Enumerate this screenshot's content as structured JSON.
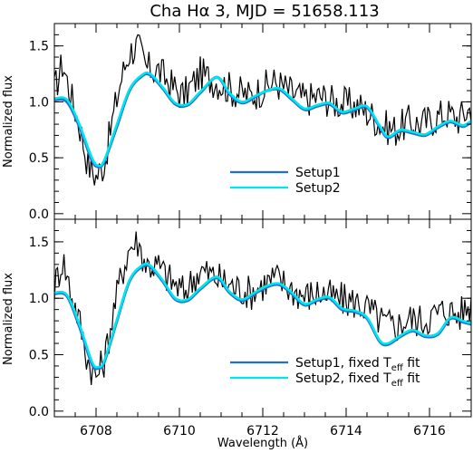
{
  "chart_data": [
    {
      "type": "line",
      "title": "Cha Hα 3, MJD = 51658.113",
      "xlabel": "",
      "ylabel": "Normalized flux",
      "xlim": [
        6707.0,
        6717.0
      ],
      "ylim": [
        -0.05,
        1.7
      ],
      "y_ticks": [
        "0.0",
        "0.5",
        "1.0",
        "1.5"
      ],
      "x_ticks": [
        "",
        "",
        "",
        "",
        ""
      ],
      "legend_position": "bottom-right",
      "series": [
        {
          "name": "",
          "color": "#000000",
          "kind": "observed-noisy",
          "x": [
            6707.0,
            6707.2,
            6707.4,
            6707.6,
            6707.8,
            6708.0,
            6708.2,
            6708.4,
            6708.6,
            6708.8,
            6709.0,
            6709.2,
            6709.5,
            6709.8,
            6710.1,
            6710.5,
            6710.9,
            6711.3,
            6711.7,
            6712.0,
            6712.3,
            6712.7,
            6713.0,
            6713.4,
            6713.7,
            6714.0,
            6714.3,
            6714.6,
            6714.9,
            6715.2,
            6715.5,
            6715.8,
            6716.1,
            6716.4,
            6716.7,
            6717.0
          ],
          "y": [
            1.1,
            1.35,
            1.05,
            0.8,
            0.45,
            0.33,
            0.45,
            0.85,
            1.2,
            1.45,
            1.5,
            1.3,
            1.28,
            1.15,
            1.05,
            1.25,
            1.18,
            1.1,
            1.05,
            1.12,
            1.18,
            1.08,
            1.02,
            1.05,
            1.0,
            0.98,
            0.96,
            0.88,
            0.78,
            0.75,
            0.82,
            0.8,
            0.85,
            0.9,
            0.85,
            0.95
          ]
        },
        {
          "name": "Setup1",
          "color": "#1f6fd1",
          "x": [
            6707.0,
            6707.3,
            6707.6,
            6707.9,
            6708.05,
            6708.2,
            6708.5,
            6708.8,
            6709.1,
            6709.3,
            6709.6,
            6709.9,
            6710.2,
            6710.5,
            6710.9,
            6711.2,
            6711.5,
            6711.8,
            6712.1,
            6712.4,
            6712.7,
            6713.0,
            6713.3,
            6713.6,
            6713.9,
            6714.2,
            6714.5,
            6714.8,
            6715.0,
            6715.3,
            6715.6,
            6715.9,
            6716.2,
            6716.5,
            6716.8,
            6717.0
          ],
          "y": [
            1.02,
            1.0,
            0.78,
            0.48,
            0.42,
            0.47,
            0.78,
            1.1,
            1.23,
            1.24,
            1.12,
            0.98,
            0.97,
            1.08,
            1.22,
            1.07,
            0.99,
            1.04,
            1.1,
            1.11,
            1.02,
            0.93,
            0.96,
            0.98,
            0.9,
            0.93,
            0.95,
            0.78,
            0.68,
            0.74,
            0.72,
            0.7,
            0.77,
            0.82,
            0.78,
            0.82
          ]
        },
        {
          "name": "Setup2",
          "color": "#00e5ee",
          "x": [
            6707.0,
            6707.3,
            6707.6,
            6707.9,
            6708.05,
            6708.2,
            6708.5,
            6708.8,
            6709.1,
            6709.3,
            6709.6,
            6709.9,
            6710.2,
            6710.5,
            6710.9,
            6711.2,
            6711.5,
            6711.8,
            6712.1,
            6712.4,
            6712.7,
            6713.0,
            6713.3,
            6713.6,
            6713.9,
            6714.2,
            6714.5,
            6714.8,
            6715.0,
            6715.3,
            6715.6,
            6715.9,
            6716.2,
            6716.5,
            6716.8,
            6717.0
          ],
          "y": [
            1.03,
            1.02,
            0.8,
            0.5,
            0.43,
            0.48,
            0.8,
            1.11,
            1.24,
            1.25,
            1.13,
            0.99,
            0.98,
            1.09,
            1.22,
            1.08,
            1.0,
            1.05,
            1.1,
            1.12,
            1.03,
            0.94,
            0.97,
            0.99,
            0.91,
            0.94,
            0.96,
            0.79,
            0.69,
            0.75,
            0.73,
            0.71,
            0.78,
            0.83,
            0.79,
            0.83
          ]
        }
      ]
    },
    {
      "type": "line",
      "title": "",
      "xlabel": "Wavelength (Å)",
      "ylabel": "Normalized flux",
      "xlim": [
        6707.0,
        6717.0
      ],
      "ylim": [
        -0.05,
        1.7
      ],
      "y_ticks": [
        "0.0",
        "0.5",
        "1.0",
        "1.5"
      ],
      "x_ticks": [
        "6708",
        "6710",
        "6712",
        "6714",
        "6716"
      ],
      "legend_position": "bottom-right",
      "series": [
        {
          "name": "",
          "color": "#000000",
          "kind": "observed-noisy",
          "x": [
            6707.0,
            6707.2,
            6707.4,
            6707.6,
            6707.8,
            6708.0,
            6708.2,
            6708.4,
            6708.6,
            6708.8,
            6709.0,
            6709.2,
            6709.5,
            6709.8,
            6710.1,
            6710.5,
            6710.9,
            6711.3,
            6711.7,
            6712.0,
            6712.3,
            6712.7,
            6713.0,
            6713.4,
            6713.7,
            6714.0,
            6714.3,
            6714.6,
            6714.9,
            6715.2,
            6715.5,
            6715.8,
            6716.1,
            6716.4,
            6716.7,
            6717.0
          ],
          "y": [
            1.1,
            1.35,
            1.05,
            0.8,
            0.45,
            0.3,
            0.45,
            0.85,
            1.2,
            1.45,
            1.5,
            1.3,
            1.28,
            1.15,
            1.05,
            1.25,
            1.18,
            1.1,
            1.05,
            1.12,
            1.18,
            1.08,
            1.02,
            1.05,
            1.0,
            0.98,
            0.96,
            0.88,
            0.78,
            0.75,
            0.82,
            0.8,
            0.85,
            0.9,
            0.85,
            0.95
          ]
        },
        {
          "name": "Setup1, fixed T_eff fit",
          "color": "#1f6fd1",
          "x": [
            6707.0,
            6707.3,
            6707.6,
            6707.9,
            6708.05,
            6708.2,
            6708.5,
            6708.8,
            6709.1,
            6709.3,
            6709.6,
            6709.9,
            6710.2,
            6710.5,
            6710.9,
            6711.2,
            6711.5,
            6711.8,
            6712.1,
            6712.4,
            6712.7,
            6713.0,
            6713.3,
            6713.6,
            6713.9,
            6714.2,
            6714.5,
            6714.8,
            6715.0,
            6715.3,
            6715.6,
            6715.9,
            6716.2,
            6716.5,
            6716.8,
            6717.0
          ],
          "y": [
            1.04,
            1.02,
            0.75,
            0.42,
            0.38,
            0.44,
            0.8,
            1.15,
            1.28,
            1.28,
            1.15,
            0.99,
            0.98,
            1.08,
            1.18,
            1.05,
            0.98,
            1.04,
            1.1,
            1.12,
            1.04,
            0.94,
            0.98,
            1.0,
            0.9,
            0.88,
            0.82,
            0.62,
            0.59,
            0.66,
            0.71,
            0.66,
            0.68,
            0.82,
            0.79,
            0.77
          ]
        },
        {
          "name": "Setup2, fixed T_eff fit",
          "color": "#00e5ee",
          "x": [
            6707.0,
            6707.3,
            6707.6,
            6707.9,
            6708.05,
            6708.2,
            6708.5,
            6708.8,
            6709.1,
            6709.3,
            6709.6,
            6709.9,
            6710.2,
            6710.5,
            6710.9,
            6711.2,
            6711.5,
            6711.8,
            6712.1,
            6712.4,
            6712.7,
            6713.0,
            6713.3,
            6713.6,
            6713.9,
            6714.2,
            6714.5,
            6714.8,
            6715.0,
            6715.3,
            6715.6,
            6715.9,
            6716.2,
            6716.5,
            6716.8,
            6717.0
          ],
          "y": [
            1.05,
            1.03,
            0.77,
            0.44,
            0.39,
            0.45,
            0.81,
            1.16,
            1.29,
            1.29,
            1.16,
            1.0,
            0.99,
            1.09,
            1.19,
            1.06,
            0.99,
            1.05,
            1.11,
            1.13,
            1.05,
            0.95,
            0.99,
            1.01,
            0.91,
            0.89,
            0.83,
            0.63,
            0.6,
            0.67,
            0.72,
            0.67,
            0.69,
            0.83,
            0.8,
            0.78
          ]
        }
      ]
    }
  ]
}
